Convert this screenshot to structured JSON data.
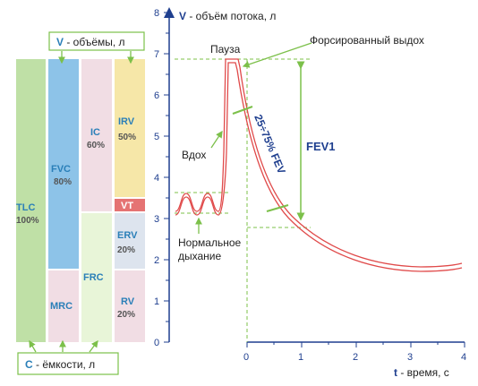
{
  "legend_volumes": {
    "var": "V",
    "text": " - объёмы, л"
  },
  "legend_capacities": {
    "var": "C",
    "text": " - ёмкости, л"
  },
  "boxes": {
    "tlc": {
      "label": "TLC",
      "pct": "100%"
    },
    "fvc": {
      "label": "FVC",
      "pct": "80%"
    },
    "mrc": {
      "label": "MRC"
    },
    "ic": {
      "label": "IC",
      "pct": "60%"
    },
    "frc": {
      "label": "FRC"
    },
    "irv": {
      "label": "IRV",
      "pct": "50%"
    },
    "vt": {
      "label": "VT"
    },
    "erv": {
      "label": "ERV",
      "pct": "20%"
    },
    "rv": {
      "label": "RV",
      "pct": "20%"
    }
  },
  "y_axis": {
    "var": "V",
    "label": " - объём потока, л",
    "ticks": [
      "0",
      "1",
      "2",
      "3",
      "4",
      "5",
      "6",
      "7",
      "8"
    ]
  },
  "x_axis": {
    "var": "t",
    "label": " - время, с",
    "ticks": [
      "0",
      "1",
      "2",
      "3",
      "4"
    ]
  },
  "annotations": {
    "pause": "Пауза",
    "forced_exhale": "Форсированный выдох",
    "inhale": "Вдох",
    "normal_line1": "Нормальное",
    "normal_line2": "дыхание",
    "fev1": "FEV1",
    "fev_range": "25÷75% FEV"
  },
  "colors": {
    "tlc": "#bfe0a6",
    "fvc": "#8dc3e8",
    "light_green": "#e8f5d8",
    "pink": "#f1dde4",
    "yellow": "#f6e7a8",
    "vt": "#e57373",
    "grey_blue": "#dde4ee",
    "curve": "#e04a4a",
    "axis": "#1f3f8f",
    "guide": "#7cc04a",
    "label_blue": "#2a7fb8"
  }
}
